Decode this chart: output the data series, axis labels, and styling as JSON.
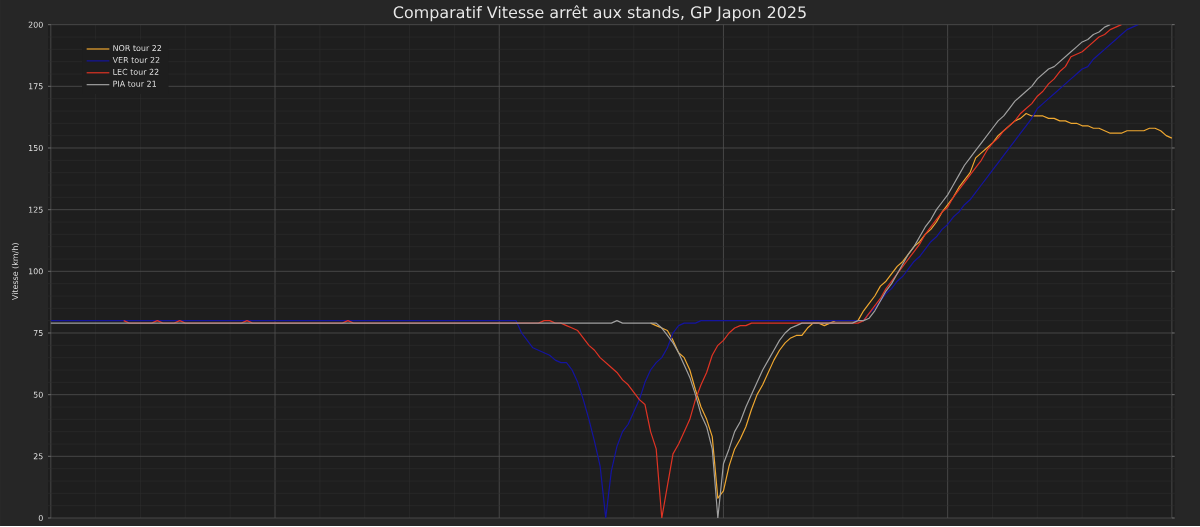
{
  "chart_data": {
    "type": "line",
    "title": "Comparatif Vitesse arrêt aux stands, GP Japon 2025",
    "ylabel": "Vitesse (km/h)",
    "categories": [
      null,
      null,
      null,
      null,
      null,
      null,
      null,
      null,
      null,
      null,
      null,
      null,
      null,
      null,
      null,
      null,
      null,
      null,
      null,
      null,
      null,
      null,
      null,
      null,
      null,
      null,
      null,
      null,
      null,
      null,
      null,
      null,
      null,
      null,
      null,
      null,
      null,
      null,
      null,
      null,
      null,
      null,
      null,
      null,
      null,
      null,
      null,
      null,
      null,
      null,
      null,
      null,
      null,
      null,
      null,
      null,
      null,
      null,
      null,
      null,
      null,
      null,
      null,
      null,
      null,
      null,
      null,
      null,
      null,
      null,
      null,
      null,
      null,
      null,
      null,
      null,
      null,
      null,
      null,
      null,
      null,
      null,
      null,
      null,
      null,
      null,
      null,
      null,
      null,
      null,
      null,
      null,
      null,
      null,
      null,
      null,
      null,
      null,
      null,
      null,
      null,
      null,
      null,
      null,
      null,
      null,
      null,
      null,
      null,
      null,
      null,
      null,
      null,
      null,
      null,
      null,
      null,
      null,
      null,
      null,
      null,
      null,
      null,
      null,
      null,
      null,
      null,
      null,
      null,
      null,
      null,
      null,
      null,
      null,
      null,
      null,
      null,
      null,
      null,
      null,
      null,
      null,
      null,
      null,
      null,
      null,
      null,
      null,
      null,
      null,
      null,
      null,
      null,
      null,
      null,
      null,
      null,
      null,
      null,
      null,
      null,
      null,
      null,
      null,
      null,
      null,
      null,
      null,
      null,
      null,
      null,
      null,
      null,
      null,
      null,
      null,
      null,
      null,
      null,
      null,
      null,
      null,
      null,
      null,
      null,
      null,
      null,
      null,
      null,
      null,
      null,
      null,
      null,
      null,
      null,
      null,
      null,
      null,
      null,
      null,
      null
    ],
    "series": [
      {
        "name": "NOR tour 22",
        "color": "#f0a830",
        "values": [
          null,
          null,
          null,
          null,
          null,
          null,
          null,
          null,
          null,
          null,
          null,
          null,
          null,
          null,
          null,
          null,
          null,
          null,
          null,
          null,
          null,
          null,
          null,
          null,
          null,
          null,
          null,
          null,
          null,
          null,
          null,
          null,
          null,
          null,
          null,
          null,
          null,
          null,
          null,
          null,
          null,
          null,
          null,
          null,
          null,
          null,
          null,
          null,
          null,
          null,
          null,
          null,
          null,
          null,
          null,
          null,
          null,
          null,
          null,
          null,
          null,
          null,
          null,
          null,
          null,
          null,
          null,
          null,
          null,
          null,
          null,
          null,
          null,
          null,
          null,
          null,
          null,
          null,
          null,
          null,
          null,
          null,
          null,
          null,
          null,
          null,
          null,
          null,
          null,
          null,
          null,
          null,
          null,
          null,
          null,
          null,
          null,
          null,
          null,
          null,
          null,
          null,
          null,
          null,
          null,
          null,
          null,
          79,
          78,
          77,
          76,
          72,
          67,
          65,
          60,
          52,
          45,
          40,
          33,
          8,
          11,
          21,
          28,
          32,
          37,
          44,
          50,
          54,
          59,
          64,
          68,
          71,
          73,
          74,
          74,
          77,
          79,
          79,
          78,
          79,
          80,
          80,
          80,
          80,
          80,
          84,
          87,
          90,
          94,
          96,
          99,
          102,
          104,
          107,
          110,
          112,
          115,
          117,
          120,
          124,
          127,
          130,
          134,
          137,
          140,
          146,
          148,
          150,
          152,
          155,
          157,
          159,
          161,
          162,
          164,
          163,
          163,
          163,
          162,
          162,
          161,
          161,
          160,
          160,
          159,
          159,
          158,
          158,
          157,
          156,
          156,
          156,
          157,
          157,
          157,
          157,
          158,
          158,
          157,
          155,
          154
        ]
      },
      {
        "name": "VER tour 22",
        "color": "#1414a0",
        "values": [
          80,
          80,
          80,
          80,
          80,
          80,
          80,
          80,
          80,
          80,
          80,
          80,
          80,
          80,
          80,
          80,
          80,
          80,
          80,
          80,
          80,
          80,
          80,
          80,
          80,
          80,
          80,
          80,
          80,
          80,
          80,
          80,
          80,
          80,
          80,
          80,
          80,
          80,
          80,
          80,
          80,
          80,
          80,
          80,
          80,
          80,
          80,
          80,
          80,
          80,
          80,
          80,
          80,
          80,
          80,
          80,
          80,
          80,
          80,
          80,
          80,
          80,
          80,
          80,
          80,
          80,
          80,
          80,
          80,
          80,
          80,
          80,
          80,
          80,
          80,
          80,
          80,
          80,
          80,
          80,
          80,
          80,
          80,
          80,
          75,
          72,
          69,
          68,
          67,
          66,
          64,
          63,
          63,
          60,
          55,
          48,
          40,
          31,
          21,
          0,
          19,
          29,
          35,
          38,
          43,
          48,
          55,
          60,
          63,
          65,
          69,
          75,
          78,
          79,
          79,
          79,
          80,
          80,
          80,
          80,
          80,
          80,
          80,
          80,
          80,
          80,
          80,
          80,
          80,
          80,
          80,
          80,
          80,
          80,
          80,
          80,
          80,
          80,
          80,
          80,
          80,
          80,
          80,
          80,
          80,
          80,
          83,
          85,
          88,
          91,
          93,
          96,
          98,
          101,
          104,
          106,
          109,
          112,
          114,
          117,
          119,
          122,
          124,
          127,
          129,
          132,
          135,
          138,
          141,
          144,
          147,
          150,
          153,
          156,
          159,
          162,
          166,
          168,
          170,
          172,
          174,
          176,
          178,
          180,
          182,
          183,
          186,
          188,
          190,
          192,
          194,
          196,
          198,
          199,
          200,
          null,
          null,
          null,
          null,
          null,
          null
        ]
      },
      {
        "name": "LEC tour 22",
        "color": "#e03424",
        "values": [
          null,
          null,
          null,
          null,
          null,
          null,
          null,
          null,
          null,
          null,
          null,
          null,
          null,
          80,
          79,
          79,
          79,
          79,
          79,
          80,
          79,
          79,
          79,
          80,
          79,
          79,
          79,
          79,
          79,
          79,
          79,
          79,
          79,
          79,
          79,
          80,
          79,
          79,
          79,
          79,
          79,
          79,
          79,
          79,
          79,
          79,
          79,
          79,
          79,
          79,
          79,
          79,
          79,
          80,
          79,
          79,
          79,
          79,
          79,
          79,
          79,
          79,
          79,
          79,
          79,
          79,
          79,
          79,
          79,
          79,
          79,
          79,
          79,
          79,
          79,
          79,
          79,
          79,
          79,
          79,
          79,
          79,
          79,
          79,
          79,
          79,
          79,
          79,
          80,
          80,
          79,
          79,
          78,
          77,
          76,
          73,
          70,
          68,
          65,
          63,
          61,
          59,
          56,
          54,
          51,
          48,
          46,
          35,
          28,
          0,
          13,
          26,
          30,
          35,
          40,
          48,
          54,
          59,
          66,
          70,
          72,
          75,
          77,
          78,
          78,
          79,
          79,
          79,
          79,
          79,
          79,
          79,
          79,
          79,
          79,
          79,
          79,
          79,
          79,
          79,
          79,
          79,
          79,
          79,
          79,
          80,
          83,
          86,
          89,
          93,
          96,
          99,
          102,
          105,
          108,
          111,
          115,
          118,
          121,
          124,
          126,
          130,
          133,
          136,
          139,
          142,
          145,
          149,
          152,
          154,
          157,
          159,
          161,
          164,
          166,
          168,
          171,
          173,
          176,
          178,
          181,
          183,
          187,
          188,
          189,
          191,
          193,
          195,
          196,
          198,
          199,
          200,
          null,
          null,
          null,
          null,
          null,
          null,
          null,
          null,
          null
        ]
      },
      {
        "name": "PIA tour 21",
        "color": "#a0a0a0",
        "values": [
          79,
          79,
          79,
          79,
          79,
          79,
          79,
          79,
          79,
          79,
          79,
          79,
          79,
          79,
          79,
          79,
          79,
          79,
          79,
          79,
          79,
          79,
          79,
          79,
          79,
          79,
          79,
          79,
          79,
          79,
          79,
          79,
          79,
          79,
          79,
          79,
          79,
          79,
          79,
          79,
          79,
          79,
          79,
          79,
          79,
          79,
          79,
          79,
          79,
          79,
          79,
          79,
          79,
          79,
          79,
          79,
          79,
          79,
          79,
          79,
          79,
          79,
          79,
          79,
          79,
          79,
          79,
          79,
          79,
          79,
          79,
          79,
          79,
          79,
          79,
          79,
          79,
          79,
          79,
          79,
          79,
          79,
          79,
          79,
          79,
          79,
          79,
          79,
          79,
          79,
          79,
          79,
          79,
          79,
          79,
          79,
          79,
          79,
          79,
          79,
          79,
          80,
          79,
          79,
          79,
          79,
          79,
          79,
          79,
          77,
          74,
          71,
          67,
          62,
          57,
          50,
          42,
          37,
          28,
          0,
          22,
          28,
          35,
          39,
          45,
          50,
          55,
          60,
          64,
          68,
          72,
          75,
          77,
          78,
          79,
          79,
          79,
          79,
          79,
          79,
          79,
          79,
          79,
          79,
          80,
          80,
          81,
          84,
          88,
          92,
          95,
          99,
          103,
          107,
          110,
          114,
          118,
          121,
          125,
          128,
          131,
          135,
          139,
          143,
          146,
          149,
          152,
          155,
          158,
          161,
          163,
          166,
          169,
          171,
          173,
          175,
          178,
          180,
          182,
          183,
          185,
          187,
          189,
          191,
          193,
          194,
          196,
          197,
          199,
          200,
          null,
          null,
          null,
          null,
          null,
          null,
          null,
          null,
          null,
          null,
          null
        ]
      }
    ],
    "ylim": [
      0,
      200
    ],
    "yticks": [
      0,
      25,
      50,
      75,
      100,
      125,
      150,
      175,
      200
    ],
    "grid": true,
    "legend": "top left",
    "tick_labels": "y"
  }
}
